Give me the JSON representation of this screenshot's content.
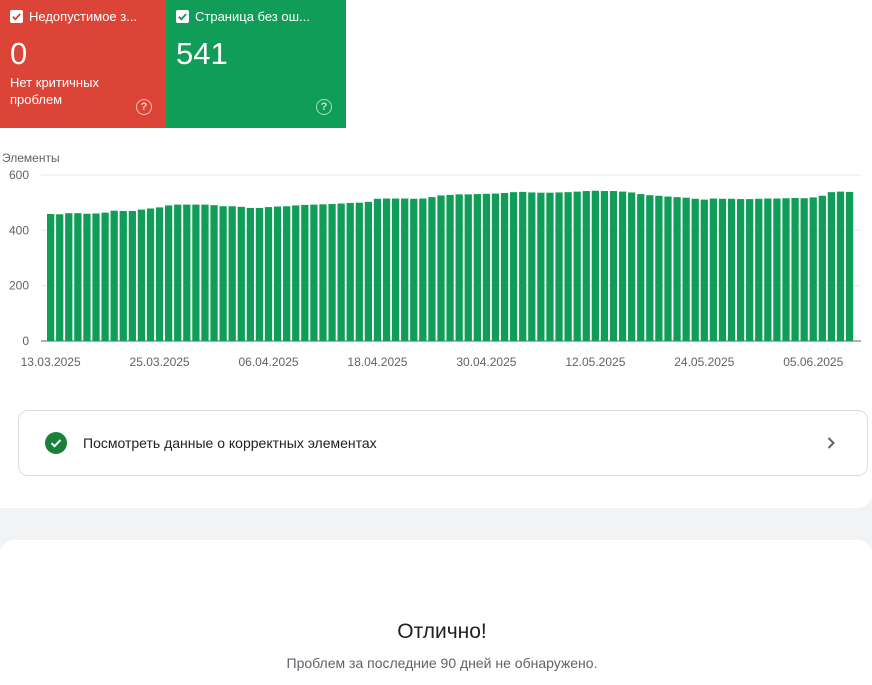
{
  "cards": {
    "errors": {
      "title": "Недопустимое з...",
      "value": "0",
      "subtitle": "Нет критичных проблем",
      "color": "#db4437",
      "icon": "checkbox-checked-icon",
      "help_icon": "help-circle-icon"
    },
    "valid": {
      "title": "Страница без ош...",
      "value": "541",
      "color": "#0f9d58",
      "icon": "checkbox-checked-icon",
      "help_icon": "help-circle-icon"
    }
  },
  "chart_data": {
    "type": "bar",
    "ylabel": "Элементы",
    "ylim": [
      0,
      600
    ],
    "yticks": [
      0,
      200,
      400,
      600
    ],
    "bar_color": "#0f9d58",
    "grid": true,
    "xtick_labels": [
      "13.03.2025",
      "25.03.2025",
      "06.04.2025",
      "18.04.2025",
      "30.04.2025",
      "12.05.2025",
      "24.05.2025",
      "05.06.2025"
    ],
    "xtick_every": 12,
    "values": [
      459,
      458,
      462,
      462,
      460,
      461,
      464,
      471,
      470,
      470,
      475,
      479,
      483,
      490,
      493,
      493,
      493,
      493,
      491,
      487,
      487,
      485,
      481,
      481,
      484,
      486,
      487,
      490,
      492,
      493,
      494,
      495,
      497,
      499,
      500,
      503,
      514,
      515,
      515,
      515,
      514,
      515,
      520,
      526,
      528,
      530,
      530,
      531,
      532,
      533,
      535,
      538,
      539,
      537,
      536,
      536,
      537,
      538,
      540,
      542,
      543,
      542,
      542,
      540,
      537,
      531,
      527,
      525,
      522,
      520,
      518,
      514,
      511,
      515,
      514,
      514,
      513,
      513,
      514,
      515,
      515,
      516,
      517,
      516,
      519,
      525,
      538,
      540,
      539
    ]
  },
  "action": {
    "label": "Посмотреть данные о корректных элементах",
    "icon": "check-circle-icon",
    "chevron": "chevron-right-icon"
  },
  "empty_state": {
    "title": "Отлично!",
    "subtitle": "Проблем за последние 90 дней не обнаружено."
  }
}
